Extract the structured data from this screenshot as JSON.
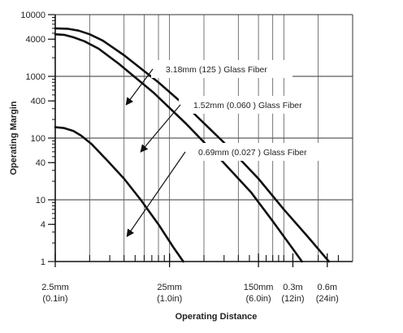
{
  "chart_data": {
    "type": "line",
    "xlabel": "Operating Distance",
    "ylabel": "Operating Margin",
    "y_scale": "log",
    "x_scale": "log",
    "ylim": [
      1,
      10000
    ],
    "xlim": [
      2.5,
      1000
    ],
    "grid": true,
    "y_ticks": [
      {
        "value": 1,
        "label": "1"
      },
      {
        "value": 4,
        "label": "4"
      },
      {
        "value": 10,
        "label": "10"
      },
      {
        "value": 40,
        "label": "40"
      },
      {
        "value": 100,
        "label": "100"
      },
      {
        "value": 400,
        "label": "400"
      },
      {
        "value": 1000,
        "label": "1000"
      },
      {
        "value": 4000,
        "label": "4000"
      },
      {
        "value": 10000,
        "label": "10000"
      }
    ],
    "x_ticks": [
      {
        "value": 2.5,
        "line1": "2.5mm",
        "line2": "(0.1in)"
      },
      {
        "value": 25,
        "line1": "25mm",
        "line2": "(1.0in)"
      },
      {
        "value": 150,
        "line1": "150mm",
        "line2": "(6.0in)"
      },
      {
        "value": 300,
        "line1": "0.3m",
        "line2": "(12in)"
      },
      {
        "value": 600,
        "line1": "0.6m",
        "line2": "(24in)"
      }
    ],
    "series": [
      {
        "name": "3.18mm (125 ) Glass Fiber",
        "x": [
          2.5,
          3.2,
          4.0,
          5.0,
          6.5,
          10,
          20,
          40,
          80,
          150,
          250,
          400,
          620
        ],
        "y": [
          6000,
          5900,
          5500,
          4800,
          3800,
          2200,
          800,
          260,
          75,
          22,
          7,
          2.6,
          1
        ]
      },
      {
        "name": "1.52mm (0.060 ) Glass Fiber",
        "x": [
          2.5,
          3.0,
          3.6,
          4.5,
          6.0,
          9,
          18,
          35,
          70,
          130,
          200,
          300,
          360
        ],
        "y": [
          4800,
          4700,
          4300,
          3700,
          2800,
          1600,
          550,
          170,
          45,
          13,
          4.5,
          1.6,
          1
        ]
      },
      {
        "name": "0.69mm (0.027 ) Glass Fiber",
        "x": [
          2.5,
          3.0,
          3.6,
          4.2,
          5.2,
          7,
          10,
          14,
          20,
          27,
          33
        ],
        "y": [
          150,
          145,
          130,
          110,
          80,
          45,
          22,
          10,
          4,
          1.7,
          1
        ]
      }
    ],
    "annotations": [
      {
        "text": "3.18mm (125 ) Glass Fiber",
        "series": 0
      },
      {
        "text": "1.52mm (0.060 ) Glass Fiber",
        "series": 1
      },
      {
        "text": "0.69mm (0.027 ) Glass Fiber",
        "series": 2
      }
    ]
  }
}
